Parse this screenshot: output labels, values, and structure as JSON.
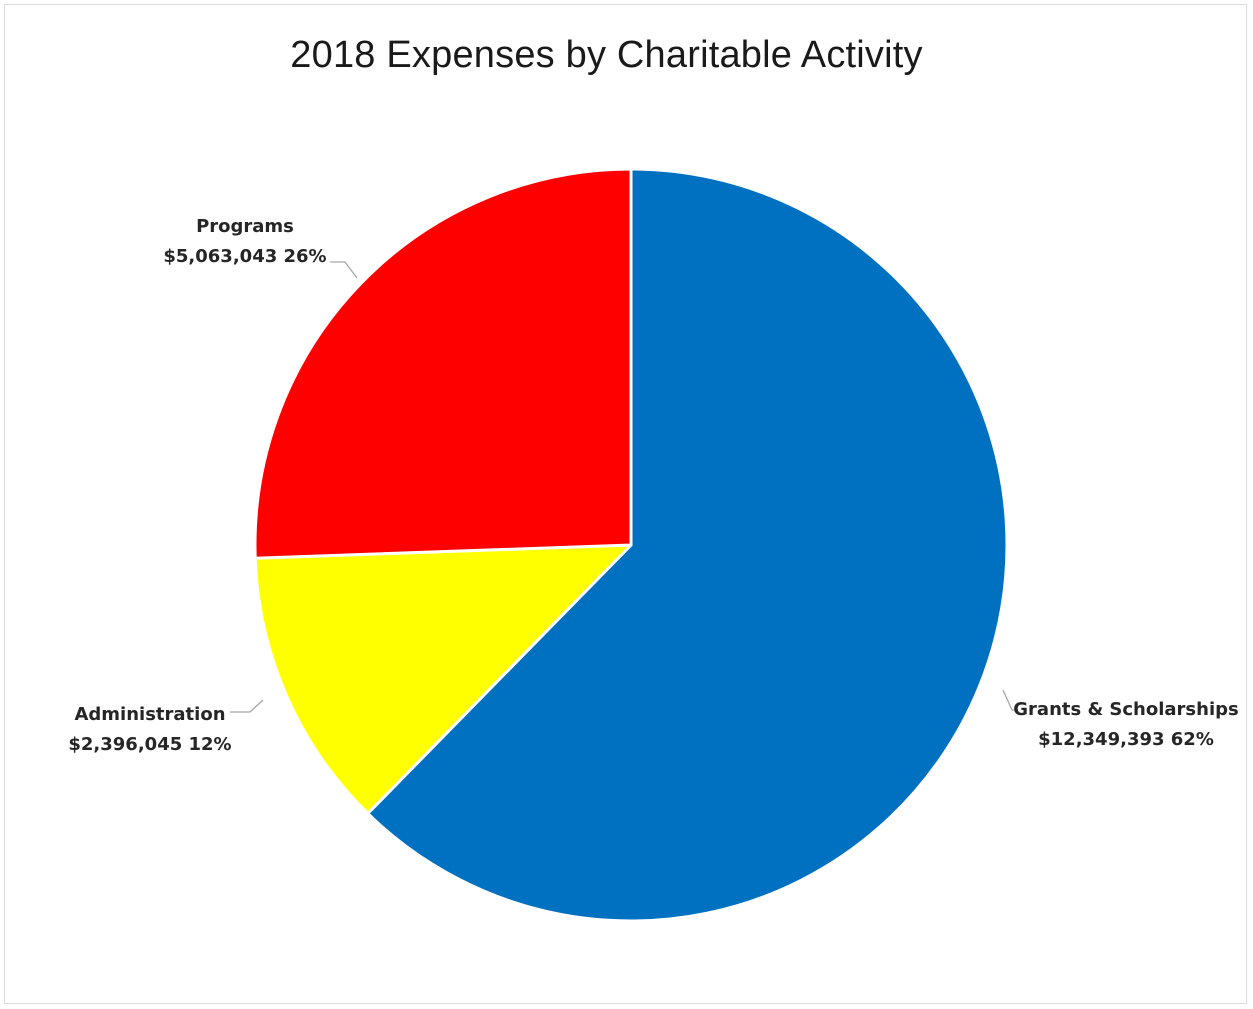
{
  "chart_data": {
    "type": "pie",
    "title": "2018 Expenses by Charitable Activity",
    "slices": [
      {
        "name": "Grants & Scholarships",
        "value": 12349393,
        "value_label": "$12,349,393",
        "percent_label": "62%",
        "color": "#0070C0"
      },
      {
        "name": "Administration",
        "value": 2396045,
        "value_label": "$2,396,045",
        "percent_label": "12%",
        "color": "#FFFF00"
      },
      {
        "name": "Programs",
        "value": 5063043,
        "value_label": "$5,063,043",
        "percent_label": "26%",
        "color": "#FF0000"
      }
    ],
    "start": "12 o'clock",
    "direction": "clockwise",
    "legend": "none",
    "data_labels": "outside with leader lines"
  }
}
